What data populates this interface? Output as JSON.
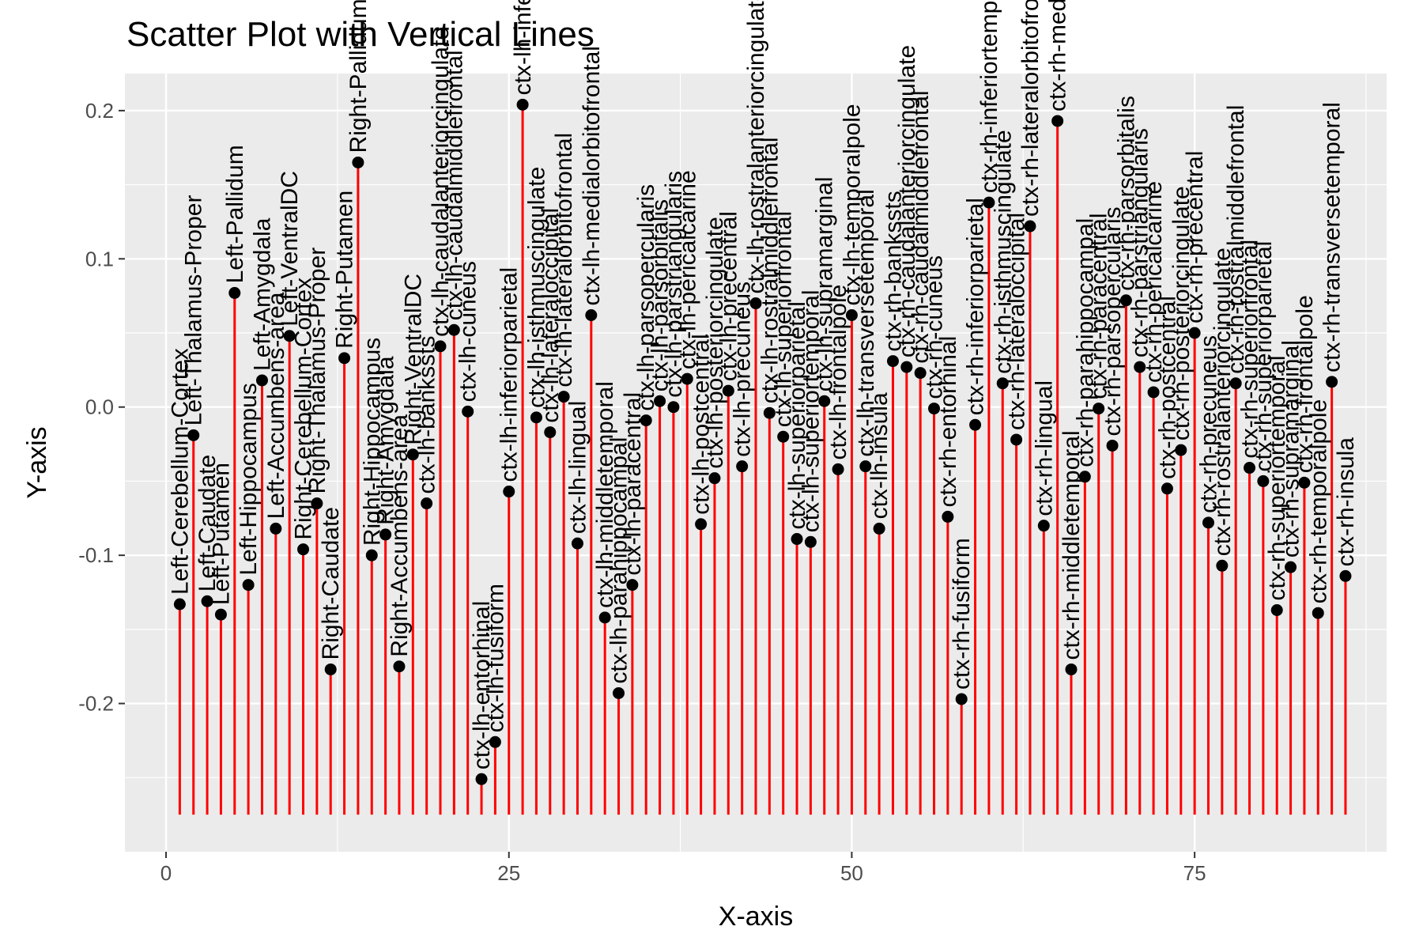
{
  "chart_data": {
    "type": "scatter",
    "title": "Scatter Plot with Vertical Lines",
    "xlabel": "X-axis",
    "ylabel": "Y-axis",
    "xlim": [
      -3,
      89
    ],
    "ylim": [
      -0.3,
      0.225
    ],
    "x_ticks": [
      0,
      25,
      50,
      75
    ],
    "x_tick_labels": [
      "0",
      "25",
      "50",
      "75"
    ],
    "y_ticks": [
      -0.2,
      -0.1,
      0.0,
      0.1,
      0.2
    ],
    "y_tick_labels": [
      "-0.2",
      "-0.1",
      "0.0",
      "0.1",
      "0.2"
    ],
    "grid": true,
    "stem_baseline": -0.275,
    "colors": {
      "panel": "#ebebeb",
      "grid": "#ffffff",
      "stem": "#ff0000",
      "point": "#000000"
    },
    "points": [
      {
        "x": 1,
        "y": -0.133,
        "label": "Left-Cerebellum-Cortex"
      },
      {
        "x": 2,
        "y": -0.019,
        "label": "Left-Thalamus-Proper"
      },
      {
        "x": 3,
        "y": -0.131,
        "label": "Left-Caudate"
      },
      {
        "x": 4,
        "y": -0.14,
        "label": "Left-Putamen"
      },
      {
        "x": 5,
        "y": 0.077,
        "label": "Left-Pallidum"
      },
      {
        "x": 6,
        "y": -0.12,
        "label": "Left-Hippocampus"
      },
      {
        "x": 7,
        "y": 0.018,
        "label": "Left-Amygdala"
      },
      {
        "x": 8,
        "y": -0.082,
        "label": "Left-Accumbens-area"
      },
      {
        "x": 9,
        "y": 0.048,
        "label": "Left-VentralDC"
      },
      {
        "x": 10,
        "y": -0.096,
        "label": "Right-Cerebellum-Cortex"
      },
      {
        "x": 11,
        "y": -0.065,
        "label": "Right-Thalamus-Proper"
      },
      {
        "x": 12,
        "y": -0.177,
        "label": "Right-Caudate"
      },
      {
        "x": 13,
        "y": 0.033,
        "label": "Right-Putamen"
      },
      {
        "x": 14,
        "y": 0.165,
        "label": "Right-Pallidum"
      },
      {
        "x": 15,
        "y": -0.1,
        "label": "Right-Hippocampus"
      },
      {
        "x": 16,
        "y": -0.086,
        "label": "Right-Amygdala"
      },
      {
        "x": 17,
        "y": -0.175,
        "label": "Right-Accumbens-area"
      },
      {
        "x": 18,
        "y": -0.032,
        "label": "Right-VentralDC"
      },
      {
        "x": 19,
        "y": -0.065,
        "label": "ctx-lh-bankssts"
      },
      {
        "x": 20,
        "y": 0.041,
        "label": "ctx-lh-caudalanteriorcingulate"
      },
      {
        "x": 21,
        "y": 0.052,
        "label": "ctx-lh-caudalmiddlefrontal"
      },
      {
        "x": 22,
        "y": -0.003,
        "label": "ctx-lh-cuneus"
      },
      {
        "x": 23,
        "y": -0.251,
        "label": "ctx-lh-entorhinal"
      },
      {
        "x": 24,
        "y": -0.226,
        "label": "ctx-lh-fusiform"
      },
      {
        "x": 25,
        "y": -0.057,
        "label": "ctx-lh-inferiorparietal"
      },
      {
        "x": 26,
        "y": 0.204,
        "label": "ctx-lh-inferiortemporal"
      },
      {
        "x": 27,
        "y": -0.007,
        "label": "ctx-lh-isthmuscingulate"
      },
      {
        "x": 28,
        "y": -0.017,
        "label": "ctx-lh-lateraloccipital"
      },
      {
        "x": 29,
        "y": 0.007,
        "label": "ctx-lh-lateralorbitofrontal"
      },
      {
        "x": 30,
        "y": -0.092,
        "label": "ctx-lh-lingual"
      },
      {
        "x": 31,
        "y": 0.062,
        "label": "ctx-lh-medialorbitofrontal"
      },
      {
        "x": 32,
        "y": -0.142,
        "label": "ctx-lh-middletemporal"
      },
      {
        "x": 33,
        "y": -0.193,
        "label": "ctx-lh-parahippocampal"
      },
      {
        "x": 34,
        "y": -0.12,
        "label": "ctx-lh-paracentral"
      },
      {
        "x": 35,
        "y": -0.009,
        "label": "ctx-lh-parsopercularis"
      },
      {
        "x": 36,
        "y": 0.004,
        "label": "ctx-lh-parsorbitalis"
      },
      {
        "x": 37,
        "y": 0.0,
        "label": "ctx-lh-parstriangularis"
      },
      {
        "x": 38,
        "y": 0.019,
        "label": "ctx-lh-pericalcarine"
      },
      {
        "x": 39,
        "y": -0.079,
        "label": "ctx-lh-postcentral"
      },
      {
        "x": 40,
        "y": -0.048,
        "label": "ctx-lh-posteriorcingulate"
      },
      {
        "x": 41,
        "y": 0.011,
        "label": "ctx-lh-precentral"
      },
      {
        "x": 42,
        "y": -0.04,
        "label": "ctx-lh-precuneus"
      },
      {
        "x": 43,
        "y": 0.07,
        "label": "ctx-lh-rostralanteriorcingulate"
      },
      {
        "x": 44,
        "y": -0.004,
        "label": "ctx-lh-rostralmiddlefrontal"
      },
      {
        "x": 45,
        "y": -0.02,
        "label": "ctx-lh-superiorfrontal"
      },
      {
        "x": 46,
        "y": -0.089,
        "label": "ctx-lh-superiorparietal"
      },
      {
        "x": 47,
        "y": -0.091,
        "label": "ctx-lh-superiortemporal"
      },
      {
        "x": 48,
        "y": 0.004,
        "label": "ctx-lh-supramarginal"
      },
      {
        "x": 49,
        "y": -0.042,
        "label": "ctx-lh-frontalpole"
      },
      {
        "x": 50,
        "y": 0.062,
        "label": "ctx-lh-temporalpole"
      },
      {
        "x": 51,
        "y": -0.04,
        "label": "ctx-lh-transversetemporal"
      },
      {
        "x": 52,
        "y": -0.082,
        "label": "ctx-lh-insula"
      },
      {
        "x": 53,
        "y": 0.031,
        "label": "ctx-rh-bankssts"
      },
      {
        "x": 54,
        "y": 0.027,
        "label": "ctx-rh-caudalanteriorcingulate"
      },
      {
        "x": 55,
        "y": 0.023,
        "label": "ctx-rh-caudalmiddlefrontal"
      },
      {
        "x": 56,
        "y": -0.001,
        "label": "ctx-rh-cuneus"
      },
      {
        "x": 57,
        "y": -0.074,
        "label": "ctx-rh-entorhinal"
      },
      {
        "x": 58,
        "y": -0.197,
        "label": "ctx-rh-fusiform"
      },
      {
        "x": 59,
        "y": -0.012,
        "label": "ctx-rh-inferiorparietal"
      },
      {
        "x": 60,
        "y": 0.138,
        "label": "ctx-rh-inferiortemporal"
      },
      {
        "x": 61,
        "y": 0.016,
        "label": "ctx-rh-isthmuscingulate"
      },
      {
        "x": 62,
        "y": -0.022,
        "label": "ctx-rh-lateraloccipital"
      },
      {
        "x": 63,
        "y": 0.122,
        "label": "ctx-rh-lateralorbitofrontal"
      },
      {
        "x": 64,
        "y": -0.08,
        "label": "ctx-rh-lingual"
      },
      {
        "x": 65,
        "y": 0.193,
        "label": "ctx-rh-medialorbitofrontal"
      },
      {
        "x": 66,
        "y": -0.177,
        "label": "ctx-rh-middletemporal"
      },
      {
        "x": 67,
        "y": -0.047,
        "label": "ctx-rh-parahippocampal"
      },
      {
        "x": 68,
        "y": -0.001,
        "label": "ctx-rh-paracentral"
      },
      {
        "x": 69,
        "y": -0.026,
        "label": "ctx-rh-parsopercularis"
      },
      {
        "x": 70,
        "y": 0.072,
        "label": "ctx-rh-parsorbitalis"
      },
      {
        "x": 71,
        "y": 0.027,
        "label": "ctx-rh-parstriangularis"
      },
      {
        "x": 72,
        "y": 0.01,
        "label": "ctx-rh-pericalcarine"
      },
      {
        "x": 73,
        "y": -0.055,
        "label": "ctx-rh-postcentral"
      },
      {
        "x": 74,
        "y": -0.029,
        "label": "ctx-rh-posteriorcingulate"
      },
      {
        "x": 75,
        "y": 0.05,
        "label": "ctx-rh-precentral"
      },
      {
        "x": 76,
        "y": -0.078,
        "label": "ctx-rh-precuneus"
      },
      {
        "x": 77,
        "y": -0.107,
        "label": "ctx-rh-rostralanteriorcingulate"
      },
      {
        "x": 78,
        "y": 0.016,
        "label": "ctx-rh-rostralmiddlefrontal"
      },
      {
        "x": 79,
        "y": -0.041,
        "label": "ctx-rh-superiorfrontal"
      },
      {
        "x": 80,
        "y": -0.05,
        "label": "ctx-rh-superiorparietal"
      },
      {
        "x": 81,
        "y": -0.137,
        "label": "ctx-rh-superiortemporal"
      },
      {
        "x": 82,
        "y": -0.108,
        "label": "ctx-rh-supramarginal"
      },
      {
        "x": 83,
        "y": -0.051,
        "label": "ctx-rh-frontalpole"
      },
      {
        "x": 84,
        "y": -0.139,
        "label": "ctx-rh-temporalpole"
      },
      {
        "x": 85,
        "y": 0.017,
        "label": "ctx-rh-transversetemporal"
      },
      {
        "x": 86,
        "y": -0.114,
        "label": "ctx-rh-insula"
      }
    ]
  }
}
